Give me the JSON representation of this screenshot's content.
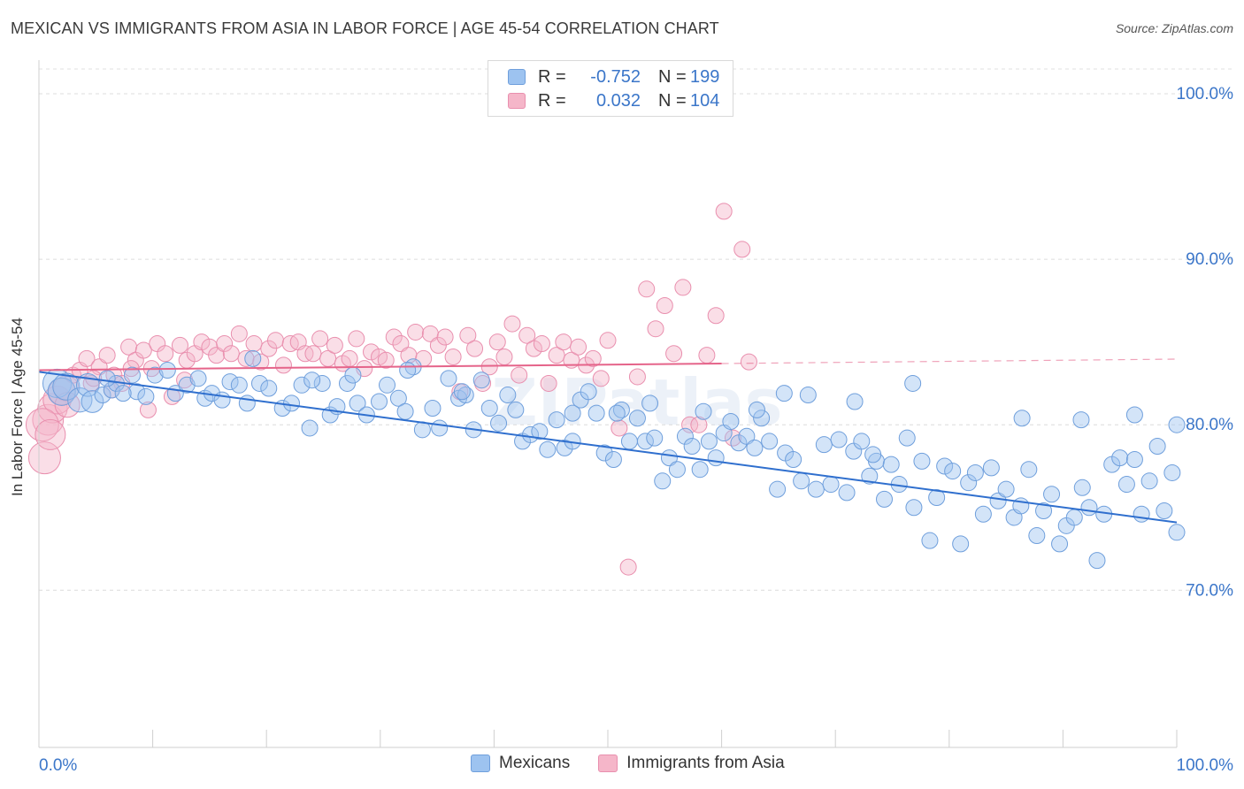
{
  "title": "MEXICAN VS IMMIGRANTS FROM ASIA IN LABOR FORCE | AGE 45-54 CORRELATION CHART",
  "source": "Source: ZipAtlas.com",
  "legend_top": [
    {
      "r_label": "R =",
      "r_value": "-0.752",
      "n_label": "N =",
      "n_value": "199",
      "color": "#9dc3f0"
    },
    {
      "r_label": "R =",
      "r_value": "0.032",
      "n_label": "N =",
      "n_value": "104",
      "color": "#f5b6c9"
    }
  ],
  "legend_bottom": [
    {
      "label": "Mexicans",
      "color": "#9dc3f0"
    },
    {
      "label": "Immigrants from Asia",
      "color": "#f5b6c9"
    }
  ],
  "chart_data": {
    "type": "scatter",
    "title": "MEXICAN VS IMMIGRANTS FROM ASIA IN LABOR FORCE | AGE 45-54 CORRELATION CHART",
    "xlabel": "",
    "ylabel": "In Labor Force | Age 45-54",
    "x_tick_labels": [
      "0.0%",
      "100.0%"
    ],
    "y_tick_labels": [
      "70.0%",
      "80.0%",
      "90.0%",
      "100.0%"
    ],
    "xlim": [
      0,
      100
    ],
    "ylim": [
      60.5,
      101.5
    ],
    "grid": true,
    "watermark": "ZIPatlas",
    "colors": {
      "mexicans": "#9dc3f0",
      "mexicans_line": "#2f6fce",
      "asia": "#f5b6c9",
      "asia_line": "#e5648a",
      "axis_text": "#3b76c9"
    },
    "series": [
      {
        "name": "Mexicans",
        "r": -0.752,
        "n": 199,
        "trend": {
          "x": [
            0,
            100
          ],
          "y": [
            83.2,
            74.1
          ]
        },
        "points": [
          [
            1.6,
            82.5
          ],
          [
            2.0,
            82.0
          ],
          [
            2.4,
            82.3
          ],
          [
            3.6,
            81.5
          ],
          [
            4.3,
            82.4
          ],
          [
            4.7,
            81.4
          ],
          [
            5.6,
            81.8
          ],
          [
            6.4,
            82.1
          ],
          [
            6.8,
            82.5
          ],
          [
            8.2,
            83.0
          ],
          [
            8.6,
            82.0
          ],
          [
            9.4,
            81.7
          ],
          [
            10.2,
            83.0
          ],
          [
            11.3,
            83.3
          ],
          [
            12.0,
            81.9
          ],
          [
            13.0,
            82.4
          ],
          [
            14.0,
            82.8
          ],
          [
            14.6,
            81.6
          ],
          [
            15.2,
            81.9
          ],
          [
            16.1,
            81.5
          ],
          [
            16.8,
            82.6
          ],
          [
            17.6,
            82.4
          ],
          [
            18.3,
            81.3
          ],
          [
            19.4,
            82.5
          ],
          [
            20.2,
            82.2
          ],
          [
            21.4,
            81.0
          ],
          [
            22.2,
            81.3
          ],
          [
            23.1,
            82.4
          ],
          [
            23.8,
            79.8
          ],
          [
            24.9,
            82.5
          ],
          [
            25.6,
            80.6
          ],
          [
            26.2,
            81.1
          ],
          [
            27.1,
            82.5
          ],
          [
            28.0,
            81.3
          ],
          [
            28.8,
            80.6
          ],
          [
            29.9,
            81.4
          ],
          [
            30.6,
            82.4
          ],
          [
            31.6,
            81.6
          ],
          [
            32.2,
            80.8
          ],
          [
            32.9,
            83.5
          ],
          [
            33.7,
            79.7
          ],
          [
            34.6,
            81.0
          ],
          [
            35.2,
            79.8
          ],
          [
            36.0,
            82.8
          ],
          [
            36.9,
            81.6
          ],
          [
            37.5,
            81.8
          ],
          [
            38.2,
            79.7
          ],
          [
            38.9,
            82.7
          ],
          [
            39.6,
            81.0
          ],
          [
            40.4,
            80.1
          ],
          [
            41.2,
            81.8
          ],
          [
            41.9,
            80.9
          ],
          [
            42.5,
            79.0
          ],
          [
            43.2,
            79.4
          ],
          [
            44.0,
            79.6
          ],
          [
            44.7,
            78.5
          ],
          [
            45.5,
            80.3
          ],
          [
            46.2,
            78.6
          ],
          [
            46.9,
            79.0
          ],
          [
            47.6,
            81.5
          ],
          [
            48.3,
            82.0
          ],
          [
            49.0,
            80.7
          ],
          [
            49.7,
            78.3
          ],
          [
            50.5,
            77.9
          ],
          [
            51.2,
            80.9
          ],
          [
            51.9,
            79.0
          ],
          [
            52.6,
            80.4
          ],
          [
            53.3,
            79.0
          ],
          [
            54.1,
            79.2
          ],
          [
            54.8,
            76.6
          ],
          [
            55.4,
            78.0
          ],
          [
            56.1,
            77.3
          ],
          [
            56.8,
            79.3
          ],
          [
            57.4,
            78.7
          ],
          [
            58.1,
            77.3
          ],
          [
            58.9,
            79.0
          ],
          [
            59.5,
            78.0
          ],
          [
            60.2,
            79.5
          ],
          [
            60.8,
            80.2
          ],
          [
            61.5,
            78.9
          ],
          [
            62.2,
            79.3
          ],
          [
            62.9,
            78.6
          ],
          [
            63.5,
            80.4
          ],
          [
            64.2,
            79.0
          ],
          [
            64.9,
            76.1
          ],
          [
            65.6,
            78.3
          ],
          [
            66.3,
            77.9
          ],
          [
            67.0,
            76.6
          ],
          [
            67.6,
            81.8
          ],
          [
            68.3,
            76.1
          ],
          [
            69.0,
            78.8
          ],
          [
            69.6,
            76.4
          ],
          [
            70.3,
            79.1
          ],
          [
            71.0,
            75.9
          ],
          [
            71.6,
            78.4
          ],
          [
            72.3,
            79.0
          ],
          [
            73.0,
            76.9
          ],
          [
            73.6,
            77.8
          ],
          [
            74.3,
            75.5
          ],
          [
            74.9,
            77.6
          ],
          [
            75.6,
            76.4
          ],
          [
            76.3,
            79.2
          ],
          [
            76.9,
            75.0
          ],
          [
            77.6,
            77.8
          ],
          [
            78.3,
            73.0
          ],
          [
            78.9,
            75.6
          ],
          [
            79.6,
            77.5
          ],
          [
            80.3,
            77.2
          ],
          [
            81.0,
            72.8
          ],
          [
            81.7,
            76.5
          ],
          [
            82.3,
            77.1
          ],
          [
            83.0,
            74.6
          ],
          [
            83.7,
            77.4
          ],
          [
            84.3,
            75.4
          ],
          [
            85.0,
            76.1
          ],
          [
            85.7,
            74.4
          ],
          [
            86.3,
            75.1
          ],
          [
            87.0,
            77.3
          ],
          [
            87.7,
            73.3
          ],
          [
            88.3,
            74.8
          ],
          [
            89.0,
            75.8
          ],
          [
            89.7,
            72.8
          ],
          [
            90.3,
            73.9
          ],
          [
            91.0,
            74.4
          ],
          [
            91.7,
            76.2
          ],
          [
            92.3,
            75.0
          ],
          [
            93.0,
            71.8
          ],
          [
            93.6,
            74.6
          ],
          [
            94.3,
            77.6
          ],
          [
            95.0,
            78.0
          ],
          [
            95.6,
            76.4
          ],
          [
            96.3,
            77.9
          ],
          [
            96.9,
            74.6
          ],
          [
            97.6,
            76.6
          ],
          [
            98.3,
            78.7
          ],
          [
            98.9,
            74.8
          ],
          [
            99.6,
            77.1
          ],
          [
            100.0,
            73.5
          ],
          [
            6.0,
            82.8
          ],
          [
            7.4,
            81.9
          ],
          [
            18.8,
            84.0
          ],
          [
            24.0,
            82.7
          ],
          [
            27.6,
            83.0
          ],
          [
            32.4,
            83.3
          ],
          [
            37.2,
            82.0
          ],
          [
            46.9,
            80.7
          ],
          [
            50.8,
            80.7
          ],
          [
            53.7,
            81.3
          ],
          [
            58.4,
            80.8
          ],
          [
            63.1,
            80.9
          ],
          [
            65.5,
            81.9
          ],
          [
            71.7,
            81.4
          ],
          [
            76.8,
            82.5
          ],
          [
            86.4,
            80.4
          ],
          [
            91.6,
            80.3
          ],
          [
            96.3,
            80.6
          ],
          [
            100.0,
            80.0
          ],
          [
            73.3,
            78.2
          ]
        ]
      },
      {
        "name": "Immigrants from Asia",
        "r": 0.032,
        "n": 104,
        "trend": {
          "x": [
            0,
            60
          ],
          "y": [
            83.3,
            83.7
          ]
        },
        "points": [
          [
            0.5,
            78.0
          ],
          [
            0.8,
            80.3
          ],
          [
            1.2,
            81.0
          ],
          [
            1.6,
            81.5
          ],
          [
            2.0,
            82.0
          ],
          [
            2.4,
            82.2
          ],
          [
            3.0,
            83.0
          ],
          [
            3.6,
            83.3
          ],
          [
            4.2,
            84.0
          ],
          [
            4.6,
            82.5
          ],
          [
            5.3,
            83.5
          ],
          [
            6.0,
            84.2
          ],
          [
            6.6,
            83.0
          ],
          [
            7.3,
            82.5
          ],
          [
            7.9,
            84.7
          ],
          [
            8.5,
            83.9
          ],
          [
            9.2,
            84.5
          ],
          [
            9.9,
            83.4
          ],
          [
            10.4,
            84.9
          ],
          [
            11.1,
            84.3
          ],
          [
            11.7,
            81.7
          ],
          [
            12.4,
            84.8
          ],
          [
            13.0,
            83.9
          ],
          [
            13.7,
            84.3
          ],
          [
            14.3,
            85.0
          ],
          [
            15.0,
            84.7
          ],
          [
            15.6,
            84.2
          ],
          [
            16.3,
            84.9
          ],
          [
            16.9,
            84.3
          ],
          [
            17.6,
            85.5
          ],
          [
            18.2,
            84.0
          ],
          [
            18.9,
            84.9
          ],
          [
            19.5,
            83.8
          ],
          [
            20.2,
            84.6
          ],
          [
            20.8,
            85.1
          ],
          [
            21.5,
            83.6
          ],
          [
            22.1,
            84.9
          ],
          [
            22.8,
            85.0
          ],
          [
            23.4,
            84.3
          ],
          [
            24.1,
            84.3
          ],
          [
            24.7,
            85.2
          ],
          [
            25.4,
            84.0
          ],
          [
            26.0,
            84.8
          ],
          [
            26.7,
            83.7
          ],
          [
            27.3,
            84.0
          ],
          [
            27.9,
            85.2
          ],
          [
            28.6,
            83.4
          ],
          [
            29.2,
            84.4
          ],
          [
            29.9,
            84.1
          ],
          [
            30.5,
            83.9
          ],
          [
            31.2,
            85.3
          ],
          [
            31.8,
            84.9
          ],
          [
            32.5,
            84.2
          ],
          [
            33.1,
            85.6
          ],
          [
            33.8,
            84.0
          ],
          [
            34.4,
            85.5
          ],
          [
            35.1,
            84.8
          ],
          [
            35.7,
            85.3
          ],
          [
            36.4,
            84.1
          ],
          [
            37.0,
            82.0
          ],
          [
            37.7,
            85.4
          ],
          [
            38.3,
            84.6
          ],
          [
            39.0,
            82.5
          ],
          [
            39.6,
            83.5
          ],
          [
            40.3,
            85.0
          ],
          [
            40.9,
            84.1
          ],
          [
            41.6,
            86.1
          ],
          [
            42.2,
            83.0
          ],
          [
            42.9,
            85.4
          ],
          [
            43.5,
            84.6
          ],
          [
            44.2,
            84.9
          ],
          [
            44.8,
            82.5
          ],
          [
            45.5,
            84.2
          ],
          [
            46.1,
            85.0
          ],
          [
            46.8,
            83.9
          ],
          [
            47.4,
            84.7
          ],
          [
            48.1,
            83.6
          ],
          [
            48.7,
            84.0
          ],
          [
            49.4,
            82.8
          ],
          [
            50.0,
            85.1
          ],
          [
            51.0,
            79.8
          ],
          [
            51.8,
            71.4
          ],
          [
            52.6,
            82.9
          ],
          [
            53.4,
            88.2
          ],
          [
            54.2,
            85.8
          ],
          [
            55.0,
            87.2
          ],
          [
            55.8,
            84.3
          ],
          [
            56.6,
            88.3
          ],
          [
            57.2,
            80.0
          ],
          [
            58.0,
            80.0
          ],
          [
            58.7,
            84.2
          ],
          [
            59.5,
            86.6
          ],
          [
            60.2,
            92.9
          ],
          [
            61.0,
            79.2
          ],
          [
            61.8,
            90.6
          ],
          [
            62.4,
            83.8
          ],
          [
            0.3,
            80.0
          ],
          [
            1.0,
            79.4
          ],
          [
            2.5,
            81.2
          ],
          [
            4.8,
            82.8
          ],
          [
            6.4,
            82.1
          ],
          [
            8.1,
            83.4
          ],
          [
            9.6,
            80.9
          ],
          [
            12.8,
            82.7
          ]
        ]
      }
    ]
  }
}
